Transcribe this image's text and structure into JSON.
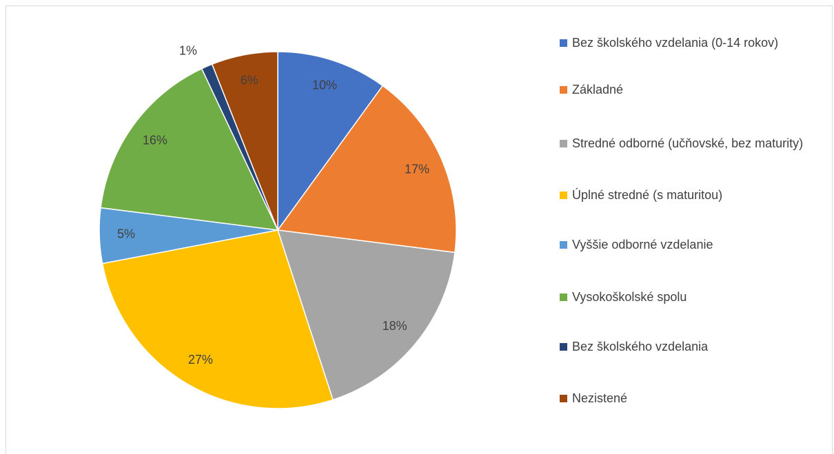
{
  "chart_data": {
    "type": "pie",
    "categories": [
      "Bez školského vzdelania (0-14 rokov)",
      "Základné",
      "Stredné odborné (učňovské, bez maturity)",
      "Úplné stredné (s maturitou)",
      "Vyššie odborné vzdelanie",
      "Vysokoškolské spolu",
      "Bez školského vzdelania",
      "Nezistené"
    ],
    "values": [
      10,
      17,
      18,
      27,
      5,
      16,
      1,
      6
    ],
    "value_labels": [
      "10%",
      "17%",
      "18%",
      "27%",
      "5%",
      "16%",
      "1%",
      "6%"
    ],
    "colors": [
      "#4472c4",
      "#ed7d31",
      "#a5a5a5",
      "#ffc000",
      "#5b9bd5",
      "#70ad47",
      "#264478",
      "#9e480e"
    ],
    "legend": "right"
  }
}
